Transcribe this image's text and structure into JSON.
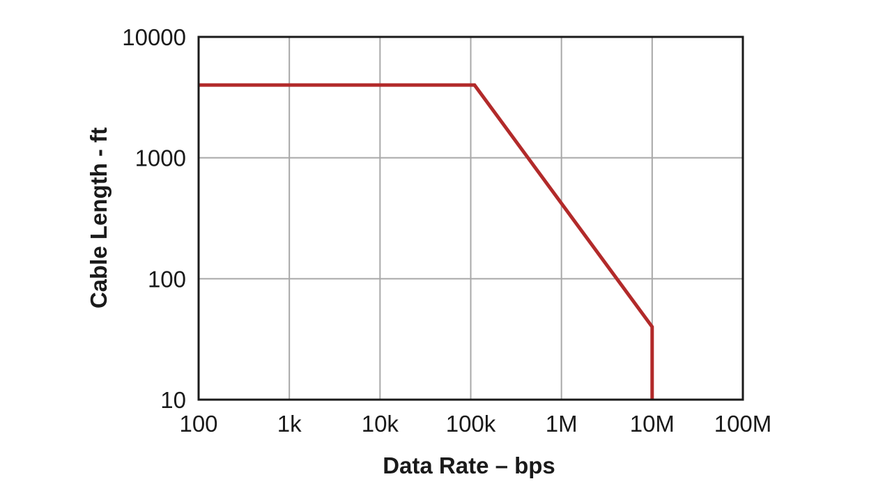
{
  "chart_data": {
    "type": "line",
    "xlabel": "Data Rate – bps",
    "ylabel": "Cable Length - ft",
    "x_scale": "log",
    "y_scale": "log",
    "xlim": [
      100,
      100000000
    ],
    "ylim": [
      10,
      10000
    ],
    "x_ticks": [
      {
        "value": 100,
        "label": "100"
      },
      {
        "value": 1000,
        "label": "1k"
      },
      {
        "value": 10000,
        "label": "10k"
      },
      {
        "value": 100000,
        "label": "100k"
      },
      {
        "value": 1000000,
        "label": "1M"
      },
      {
        "value": 10000000,
        "label": "10M"
      },
      {
        "value": 100000000,
        "label": "100M"
      }
    ],
    "y_ticks": [
      {
        "value": 10,
        "label": "10"
      },
      {
        "value": 100,
        "label": "100"
      },
      {
        "value": 1000,
        "label": "1000"
      },
      {
        "value": 10000,
        "label": "10000"
      }
    ],
    "grid": true,
    "legend": false,
    "series": [
      {
        "color": "#b22a2a",
        "points": [
          {
            "x": 100,
            "y": 4000
          },
          {
            "x": 110000,
            "y": 4000
          },
          {
            "x": 10000000,
            "y": 40
          },
          {
            "x": 10000000,
            "y": 10
          }
        ]
      }
    ]
  }
}
